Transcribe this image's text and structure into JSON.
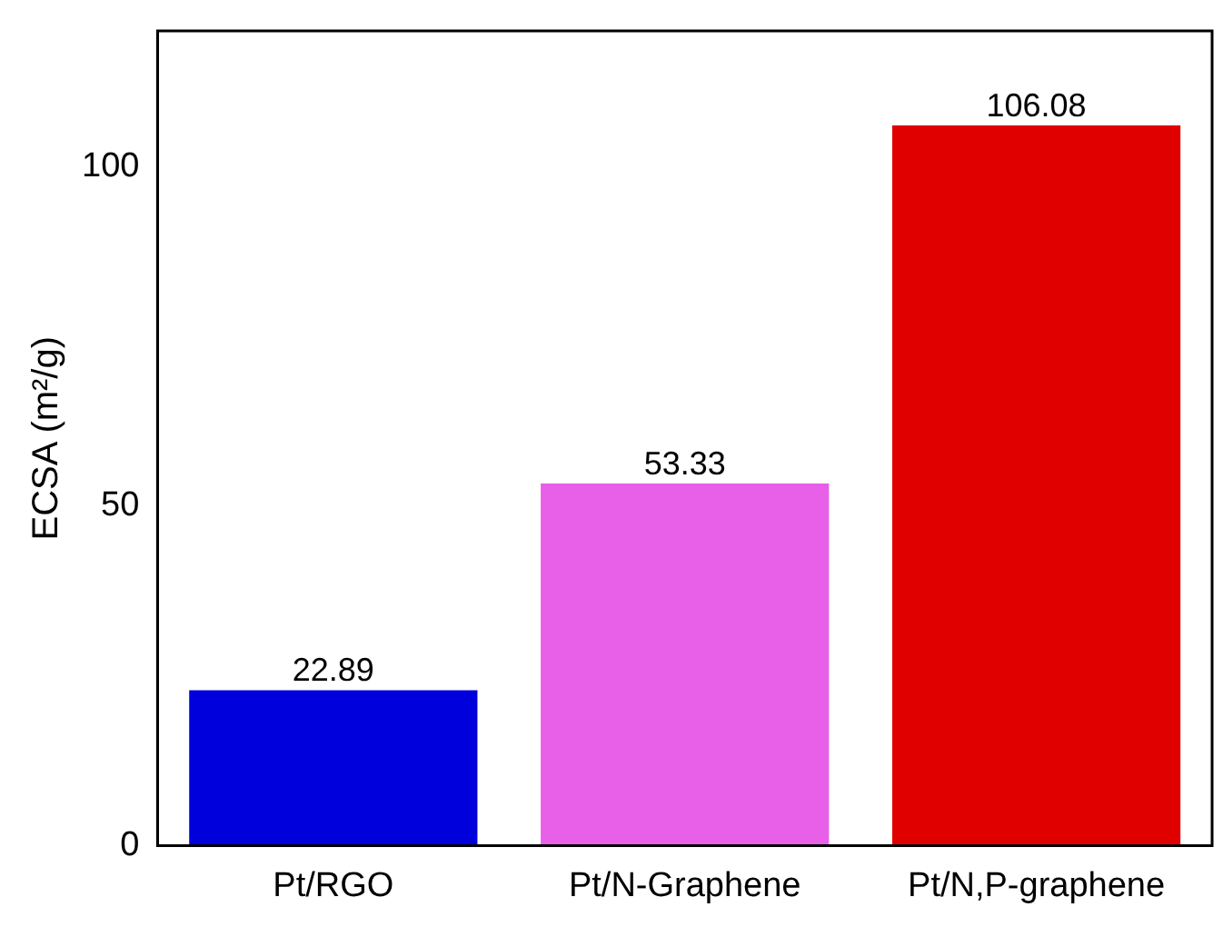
{
  "chart_data": {
    "type": "bar",
    "ylabel": "ECSA (m²/g)",
    "categories": [
      "Pt/RGO",
      "Pt/N-Graphene",
      "Pt/N,P-graphene"
    ],
    "values": [
      22.89,
      53.33,
      106.08
    ],
    "colors": [
      "#0000dd",
      "#e860e8",
      "#e00000"
    ],
    "ylim": [
      0,
      120
    ],
    "yticks": [
      0,
      50,
      100
    ],
    "grid": false,
    "legend": false,
    "data_labels": true
  }
}
